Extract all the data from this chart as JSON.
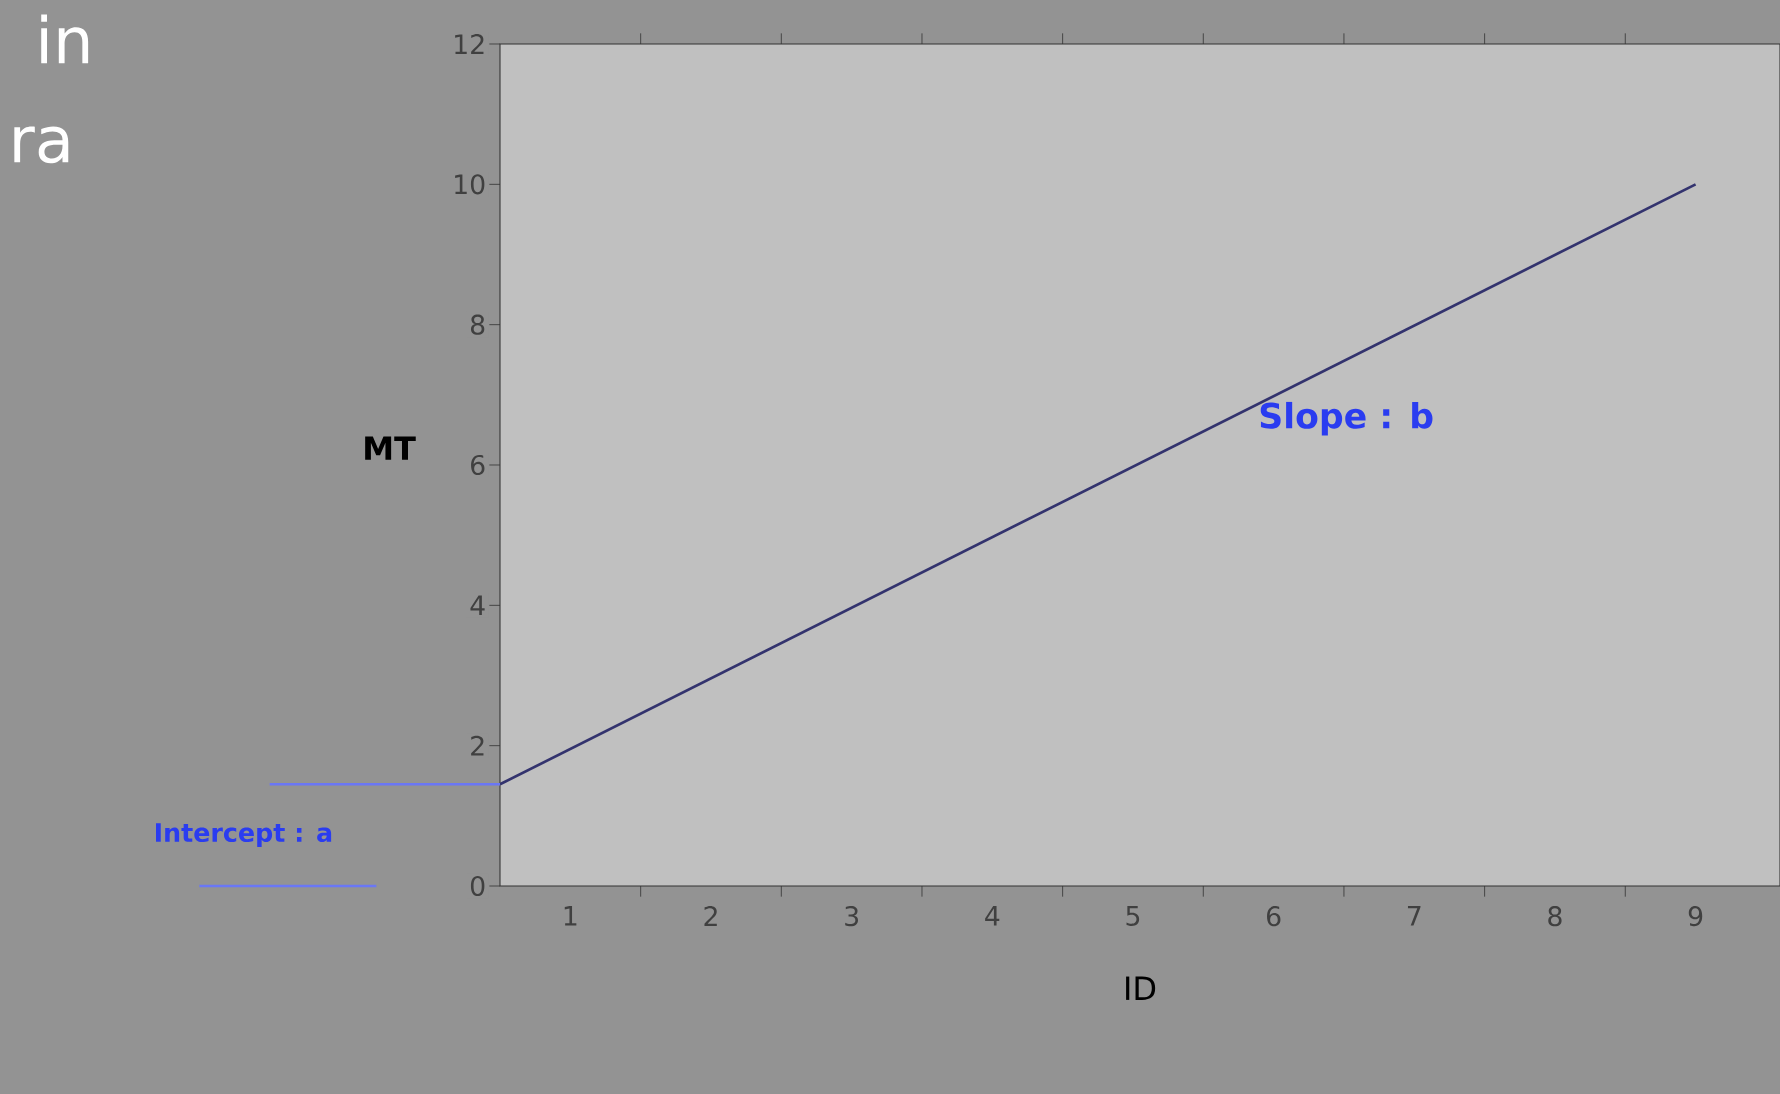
{
  "chart_data": {
    "type": "line",
    "xlabel": "ID",
    "ylabel": "MT",
    "x": [
      0.5,
      9
    ],
    "series": [
      {
        "color": "#33336e",
        "values": [
          1.45,
          10
        ]
      }
    ],
    "xlim": [
      0.5,
      9.6
    ],
    "xticks": [
      1,
      2,
      3,
      4,
      5,
      6,
      7,
      8,
      9
    ],
    "ylim": [
      0,
      12
    ],
    "yticks": [
      0,
      2,
      4,
      6,
      8,
      10,
      12
    ],
    "grid": false,
    "marker": "none",
    "line_style": "solid",
    "annotations": [
      "in",
      "ra",
      "Intercept : a",
      "Slope : b"
    ]
  }
}
